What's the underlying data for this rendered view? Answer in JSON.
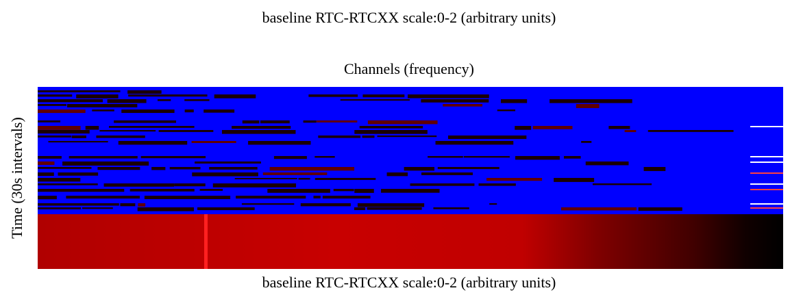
{
  "chart_data": {
    "type": "heatmap",
    "title": "baseline RTC-RTCXX scale:0-2 (arbitrary units)",
    "xlabel_top": "Channels (frequency)",
    "xlabel": "baseline RTC-RTCXX scale:0-2 (arbitrary units)",
    "ylabel": "Time (30s intervals)"
  }
}
